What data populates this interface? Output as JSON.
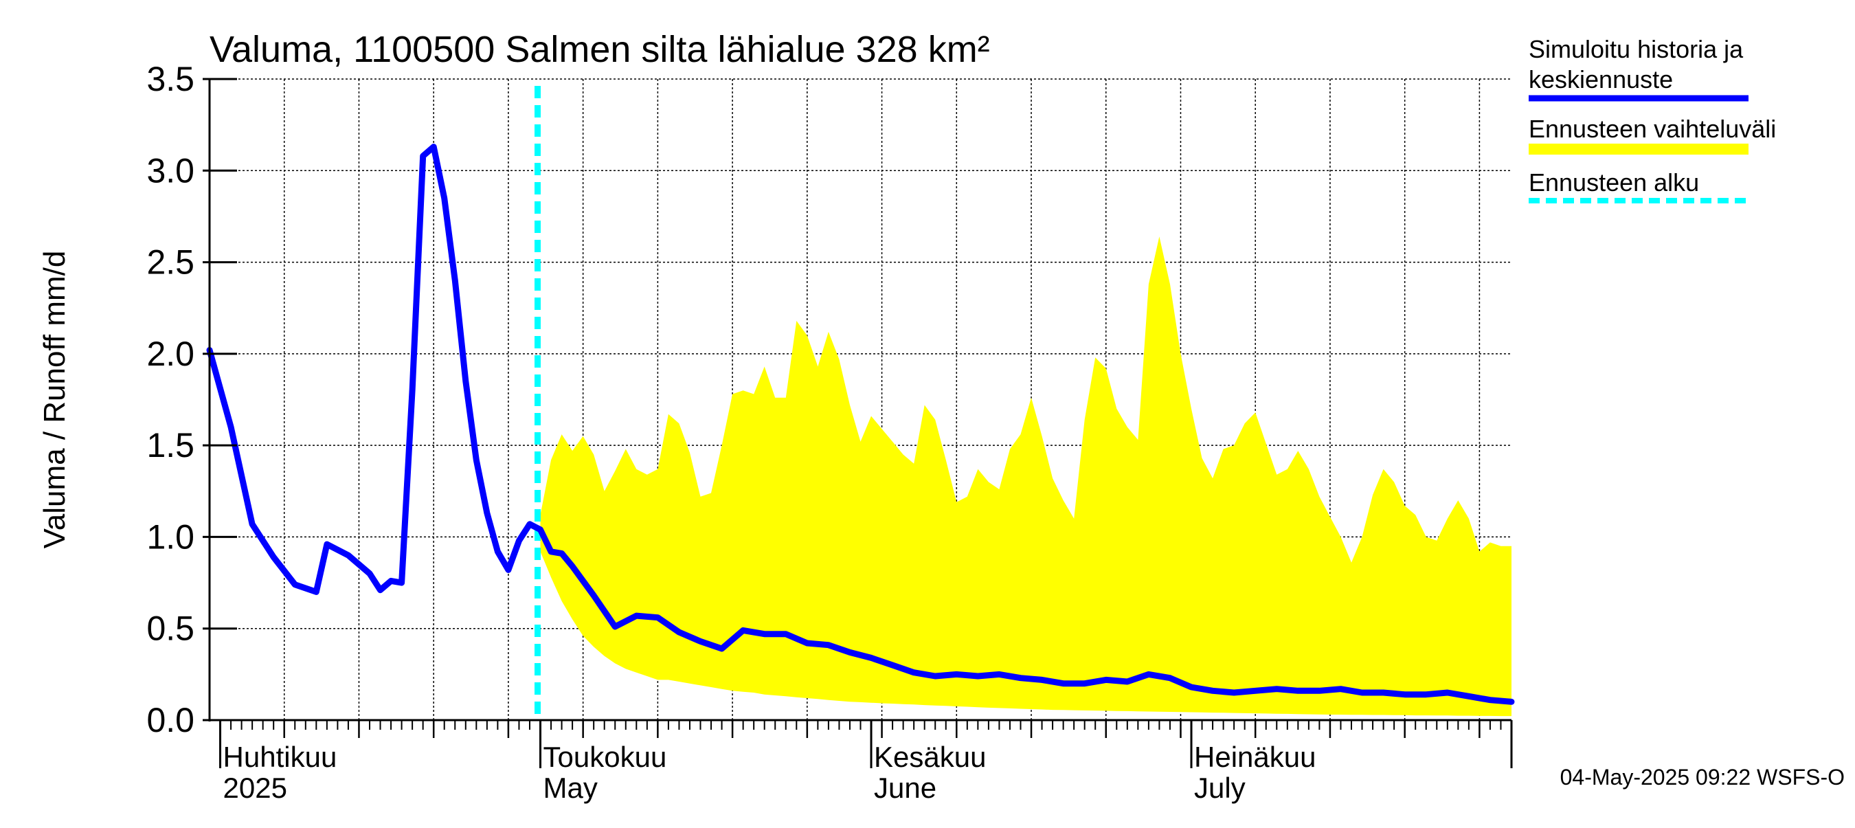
{
  "chart_data": {
    "type": "line",
    "title": "Valuma, 1100500 Salmen silta lähialue 328 km²",
    "ylabel": "Valuma / Runoff     mm/d",
    "ylim": [
      0,
      3.5
    ],
    "yticks": [
      0.0,
      0.5,
      1.0,
      1.5,
      2.0,
      2.5,
      3.0,
      3.5
    ],
    "yticklabels": [
      "0.0",
      "0.5",
      "1.0",
      "1.5",
      "2.0",
      "2.5",
      "3.0",
      "3.5"
    ],
    "xlim": [
      "2025-03-31",
      "2025-07-31"
    ],
    "month_labels": [
      {
        "date": "2025-04-01",
        "fi": "Huhtikuu",
        "en": "2025"
      },
      {
        "date": "2025-05-01",
        "fi": "Toukokuu",
        "en": "May"
      },
      {
        "date": "2025-06-01",
        "fi": "Kesäkuu",
        "en": "June"
      },
      {
        "date": "2025-07-01",
        "fi": "Heinäkuu",
        "en": "July"
      }
    ],
    "forecast_start": "2025-05-01",
    "series": [
      {
        "name": "Simuloitu historia ja keskiennuste",
        "color": "#0000ff",
        "x": [
          "2025-03-31",
          "2025-04-02",
          "2025-04-04",
          "2025-04-06",
          "2025-04-08",
          "2025-04-10",
          "2025-04-11",
          "2025-04-12",
          "2025-04-13",
          "2025-04-15",
          "2025-04-16",
          "2025-04-17",
          "2025-04-18",
          "2025-04-19",
          "2025-04-20",
          "2025-04-21",
          "2025-04-22",
          "2025-04-23",
          "2025-04-24",
          "2025-04-25",
          "2025-04-26",
          "2025-04-27",
          "2025-04-28",
          "2025-04-29",
          "2025-04-30",
          "2025-05-01",
          "2025-05-02",
          "2025-05-03",
          "2025-05-04",
          "2025-05-06",
          "2025-05-08",
          "2025-05-10",
          "2025-05-12",
          "2025-05-14",
          "2025-05-16",
          "2025-05-18",
          "2025-05-20",
          "2025-05-22",
          "2025-05-24",
          "2025-05-26",
          "2025-05-28",
          "2025-05-30",
          "2025-06-01",
          "2025-06-03",
          "2025-06-05",
          "2025-06-07",
          "2025-06-09",
          "2025-06-11",
          "2025-06-13",
          "2025-06-15",
          "2025-06-17",
          "2025-06-19",
          "2025-06-21",
          "2025-06-23",
          "2025-06-25",
          "2025-06-27",
          "2025-06-29",
          "2025-07-01",
          "2025-07-03",
          "2025-07-05",
          "2025-07-07",
          "2025-07-09",
          "2025-07-11",
          "2025-07-13",
          "2025-07-15",
          "2025-07-17",
          "2025-07-19",
          "2025-07-21",
          "2025-07-23",
          "2025-07-25",
          "2025-07-27",
          "2025-07-29",
          "2025-07-31"
        ],
        "y": [
          2.02,
          1.6,
          1.07,
          0.89,
          0.74,
          0.7,
          0.96,
          0.93,
          0.9,
          0.8,
          0.71,
          0.76,
          0.75,
          1.8,
          3.08,
          3.13,
          2.85,
          2.4,
          1.85,
          1.42,
          1.13,
          0.92,
          0.82,
          0.98,
          1.07,
          1.04,
          0.92,
          0.91,
          0.84,
          0.68,
          0.51,
          0.57,
          0.56,
          0.48,
          0.43,
          0.39,
          0.49,
          0.47,
          0.47,
          0.42,
          0.41,
          0.37,
          0.34,
          0.3,
          0.26,
          0.24,
          0.25,
          0.24,
          0.25,
          0.23,
          0.22,
          0.2,
          0.2,
          0.22,
          0.21,
          0.25,
          0.23,
          0.18,
          0.16,
          0.15,
          0.16,
          0.17,
          0.16,
          0.16,
          0.17,
          0.15,
          0.15,
          0.14,
          0.14,
          0.15,
          0.13,
          0.11,
          0.1
        ]
      },
      {
        "name": "Ennusteen vaihteluväli",
        "color": "#ffff00",
        "x": [
          "2025-05-01",
          "2025-05-02",
          "2025-05-03",
          "2025-05-04",
          "2025-05-05",
          "2025-05-06",
          "2025-05-07",
          "2025-05-08",
          "2025-05-09",
          "2025-05-10",
          "2025-05-11",
          "2025-05-12",
          "2025-05-13",
          "2025-05-14",
          "2025-05-15",
          "2025-05-16",
          "2025-05-17",
          "2025-05-18",
          "2025-05-19",
          "2025-05-20",
          "2025-05-21",
          "2025-05-22",
          "2025-05-23",
          "2025-05-24",
          "2025-05-25",
          "2025-05-26",
          "2025-05-27",
          "2025-05-28",
          "2025-05-29",
          "2025-05-30",
          "2025-05-31",
          "2025-06-01",
          "2025-06-02",
          "2025-06-03",
          "2025-06-04",
          "2025-06-05",
          "2025-06-06",
          "2025-06-07",
          "2025-06-08",
          "2025-06-09",
          "2025-06-10",
          "2025-06-11",
          "2025-06-12",
          "2025-06-13",
          "2025-06-14",
          "2025-06-15",
          "2025-06-16",
          "2025-06-17",
          "2025-06-18",
          "2025-06-19",
          "2025-06-20",
          "2025-06-21",
          "2025-06-22",
          "2025-06-23",
          "2025-06-24",
          "2025-06-25",
          "2025-06-26",
          "2025-06-27",
          "2025-06-28",
          "2025-06-29",
          "2025-06-30",
          "2025-07-01",
          "2025-07-02",
          "2025-07-03",
          "2025-07-04",
          "2025-07-05",
          "2025-07-06",
          "2025-07-07",
          "2025-07-08",
          "2025-07-09",
          "2025-07-10",
          "2025-07-11",
          "2025-07-12",
          "2025-07-13",
          "2025-07-14",
          "2025-07-15",
          "2025-07-16",
          "2025-07-17",
          "2025-07-18",
          "2025-07-19",
          "2025-07-20",
          "2025-07-21",
          "2025-07-22",
          "2025-07-23",
          "2025-07-24",
          "2025-07-25",
          "2025-07-26",
          "2025-07-27",
          "2025-07-28",
          "2025-07-29",
          "2025-07-30",
          "2025-07-31"
        ],
        "upper": [
          1.12,
          1.42,
          1.56,
          1.47,
          1.55,
          1.45,
          1.25,
          1.36,
          1.48,
          1.37,
          1.34,
          1.37,
          1.67,
          1.62,
          1.46,
          1.22,
          1.24,
          1.5,
          1.78,
          1.8,
          1.78,
          1.93,
          1.76,
          1.76,
          2.18,
          2.1,
          1.93,
          2.12,
          1.97,
          1.72,
          1.52,
          1.66,
          1.59,
          1.52,
          1.45,
          1.4,
          1.72,
          1.64,
          1.42,
          1.19,
          1.22,
          1.37,
          1.3,
          1.26,
          1.48,
          1.56,
          1.76,
          1.55,
          1.32,
          1.2,
          1.1,
          1.64,
          1.98,
          1.92,
          1.7,
          1.6,
          1.53,
          2.38,
          2.64,
          2.38,
          2.0,
          1.7,
          1.43,
          1.32,
          1.48,
          1.5,
          1.62,
          1.68,
          1.51,
          1.34,
          1.37,
          1.47,
          1.37,
          1.22,
          1.11,
          1.0,
          0.86,
          1.0,
          1.23,
          1.37,
          1.3,
          1.17,
          1.12,
          1.0,
          0.98,
          1.1,
          1.2,
          1.1,
          0.92,
          0.97,
          0.95,
          0.95
        ],
        "lower": [
          0.92,
          0.78,
          0.65,
          0.55,
          0.46,
          0.4,
          0.35,
          0.31,
          0.28,
          0.26,
          0.24,
          0.22,
          0.22,
          0.21,
          0.2,
          0.19,
          0.18,
          0.17,
          0.16,
          0.155,
          0.15,
          0.14,
          0.135,
          0.13,
          0.125,
          0.12,
          0.115,
          0.11,
          0.105,
          0.1,
          0.098,
          0.095,
          0.092,
          0.09,
          0.087,
          0.085,
          0.082,
          0.08,
          0.078,
          0.075,
          0.073,
          0.07,
          0.068,
          0.066,
          0.064,
          0.062,
          0.06,
          0.058,
          0.056,
          0.055,
          0.054,
          0.053,
          0.052,
          0.051,
          0.05,
          0.049,
          0.048,
          0.047,
          0.046,
          0.045,
          0.044,
          0.043,
          0.042,
          0.041,
          0.04,
          0.039,
          0.038,
          0.037,
          0.036,
          0.035,
          0.034,
          0.033,
          0.032,
          0.031,
          0.03,
          0.03,
          0.029,
          0.029,
          0.028,
          0.028,
          0.027,
          0.027,
          0.026,
          0.026,
          0.025,
          0.025,
          0.024,
          0.024,
          0.023,
          0.023,
          0.022,
          0.022
        ]
      }
    ],
    "legend": {
      "placement": "right",
      "entries": [
        {
          "line1": "Simuloitu historia ja",
          "line2": "keskiennuste",
          "color": "#0000ff",
          "style": "solid"
        },
        {
          "line1": "Ennusteen vaihteluväli",
          "line2": "",
          "color": "#ffff00",
          "style": "band"
        },
        {
          "line1": "Ennusteen alku",
          "line2": "",
          "color": "#00ffff",
          "style": "dashed"
        }
      ]
    },
    "grid": true
  },
  "footer": "04-May-2025 09:22 WSFS-O"
}
